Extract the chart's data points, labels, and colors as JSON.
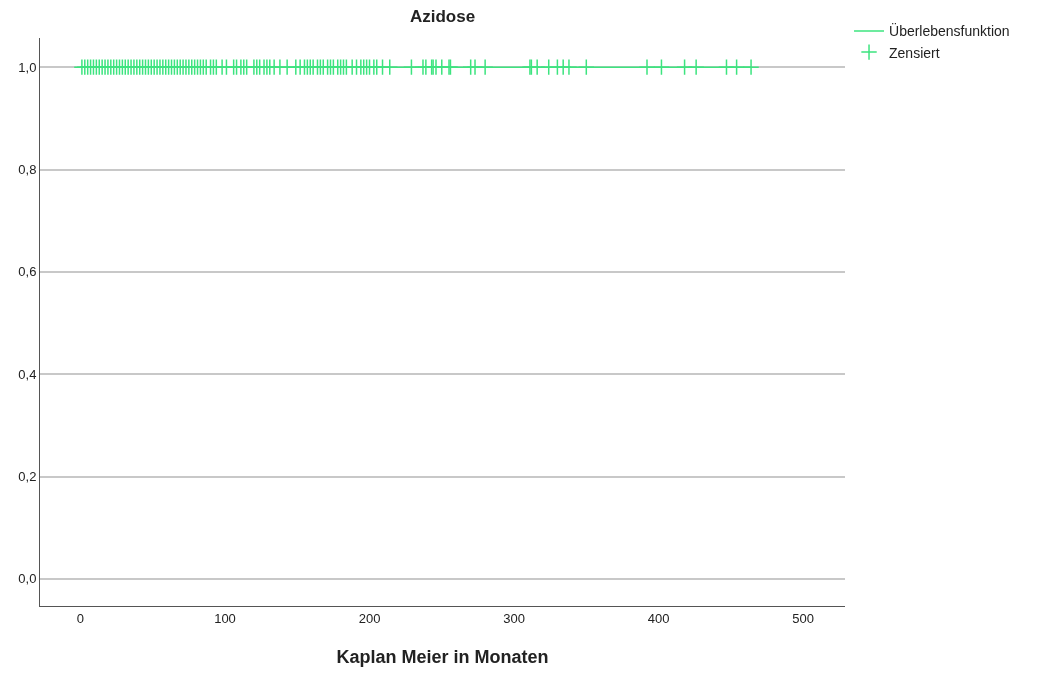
{
  "chart_data": {
    "type": "step",
    "title": "Azidose",
    "xlabel": "Kaplan Meier in Monaten",
    "xlim": [
      -28,
      529
    ],
    "xticks": [
      0,
      100,
      200,
      300,
      400,
      500
    ],
    "ylim": [
      -0.053,
      1.057
    ],
    "yticks": [
      {
        "value": 0,
        "label": "0,0"
      },
      {
        "value": 0.2,
        "label": "0,2"
      },
      {
        "value": 0.4,
        "label": "0,4"
      },
      {
        "value": 0.6,
        "label": "0,6"
      },
      {
        "value": 0.8,
        "label": "0,8"
      },
      {
        "value": 1,
        "label": "1,0"
      }
    ],
    "grid": "y",
    "legend": "top right",
    "series": [
      {
        "name": "Überlebensfunktion",
        "color": "#3de47f",
        "x": [
          0,
          464
        ],
        "values": [
          1,
          1
        ],
        "marker": "none"
      },
      {
        "name": "Zensiert",
        "type": "scatter",
        "color": "#3de47f",
        "marker": "cross",
        "x": [
          1,
          3,
          5,
          7,
          9,
          11,
          13,
          15,
          17,
          19,
          21,
          23,
          25,
          27,
          29,
          31,
          33,
          35,
          37,
          39,
          41,
          43,
          45,
          47,
          49,
          51,
          53,
          55,
          57,
          59,
          61,
          63,
          65,
          67,
          69,
          71,
          73,
          75,
          77,
          79,
          81,
          83,
          85,
          87,
          90,
          92,
          94,
          98,
          101,
          106,
          108,
          111,
          113,
          115,
          120,
          122,
          124,
          127,
          129,
          131,
          134,
          138,
          143,
          149,
          152,
          155,
          157,
          159,
          161,
          164,
          166,
          168,
          171,
          173,
          175,
          178,
          180,
          182,
          184,
          188,
          191,
          194,
          196,
          198,
          200,
          203,
          205,
          209,
          214,
          229,
          237,
          239,
          243,
          244,
          246,
          250,
          255,
          256,
          270,
          273,
          280,
          311,
          312,
          316,
          324,
          330,
          334,
          338,
          350,
          392,
          402,
          418,
          426,
          447,
          454,
          464
        ],
        "values": [
          1,
          1,
          1,
          1,
          1,
          1,
          1,
          1,
          1,
          1,
          1,
          1,
          1,
          1,
          1,
          1,
          1,
          1,
          1,
          1,
          1,
          1,
          1,
          1,
          1,
          1,
          1,
          1,
          1,
          1,
          1,
          1,
          1,
          1,
          1,
          1,
          1,
          1,
          1,
          1,
          1,
          1,
          1,
          1,
          1,
          1,
          1,
          1,
          1,
          1,
          1,
          1,
          1,
          1,
          1,
          1,
          1,
          1,
          1,
          1,
          1,
          1,
          1,
          1,
          1,
          1,
          1,
          1,
          1,
          1,
          1,
          1,
          1,
          1,
          1,
          1,
          1,
          1,
          1,
          1,
          1,
          1,
          1,
          1,
          1,
          1,
          1,
          1,
          1,
          1,
          1,
          1,
          1,
          1,
          1,
          1,
          1,
          1,
          1,
          1,
          1,
          1,
          1,
          1,
          1,
          1,
          1,
          1,
          1,
          1,
          1,
          1,
          1,
          1,
          1,
          1
        ]
      }
    ]
  }
}
